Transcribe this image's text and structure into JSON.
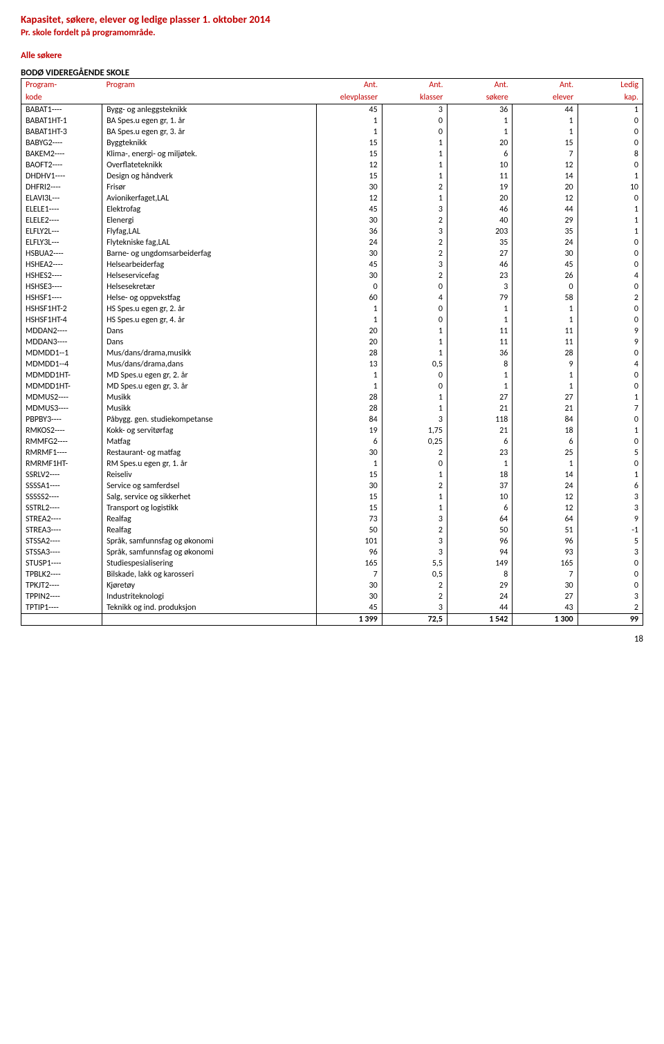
{
  "title": "Kapasitet, søkere, elever og ledige plasser 1. oktober 2014",
  "subtitle": "Pr. skole fordelt på programområde.",
  "section_label": "Alle søkere",
  "school_name": "BODØ VIDEREGÅENDE SKOLE",
  "header": {
    "row1": [
      "Program-",
      "Program",
      "Ant.",
      "Ant.",
      "Ant.",
      "Ant.",
      "Ledig"
    ],
    "row2": [
      "kode",
      "",
      "elevplasser",
      "klasser",
      "søkere",
      "elever",
      "kap."
    ]
  },
  "rows": [
    [
      "BABAT1----",
      "Bygg- og anleggsteknikk",
      45,
      3,
      36,
      44,
      1
    ],
    [
      "BABAT1HT-1",
      "BA Spes.u egen gr, 1. år",
      1,
      0,
      1,
      1,
      0
    ],
    [
      "BABAT1HT-3",
      "BA Spes.u egen gr, 3. år",
      1,
      0,
      1,
      1,
      0
    ],
    [
      "BABYG2----",
      "Byggteknikk",
      15,
      1,
      20,
      15,
      0
    ],
    [
      "BAKEM2----",
      "Klima-, energi- og miljøtek.",
      15,
      1,
      6,
      7,
      8
    ],
    [
      "BAOFT2----",
      "Overflateteknikk",
      12,
      1,
      10,
      12,
      0
    ],
    [
      "DHDHV1----",
      "Design og håndverk",
      15,
      1,
      11,
      14,
      1
    ],
    [
      "DHFRI2----",
      "Frisør",
      30,
      2,
      19,
      20,
      10
    ],
    [
      "ELAVI3L---",
      "Avionikerfaget,LAL",
      12,
      1,
      20,
      12,
      0
    ],
    [
      "ELELE1----",
      "Elektrofag",
      45,
      3,
      46,
      44,
      1
    ],
    [
      "ELELE2----",
      "Elenergi",
      30,
      2,
      40,
      29,
      1
    ],
    [
      "ELFLY2L---",
      "Flyfag,LAL",
      36,
      3,
      203,
      35,
      1
    ],
    [
      "ELFLY3L---",
      "Flytekniske fag,LAL",
      24,
      2,
      35,
      24,
      0
    ],
    [
      "HSBUA2----",
      "Barne- og ungdomsarbeiderfag",
      30,
      2,
      27,
      30,
      0
    ],
    [
      "HSHEA2----",
      "Helsearbeiderfag",
      45,
      3,
      46,
      45,
      0
    ],
    [
      "HSHES2----",
      "Helseservicefag",
      30,
      2,
      23,
      26,
      4
    ],
    [
      "HSHSE3----",
      "Helsesekretær",
      0,
      0,
      3,
      0,
      0
    ],
    [
      "HSHSF1----",
      "Helse- og oppvekstfag",
      60,
      4,
      79,
      58,
      2
    ],
    [
      "HSHSF1HT-2",
      "HS Spes.u egen gr, 2. år",
      1,
      0,
      1,
      1,
      0
    ],
    [
      "HSHSF1HT-4",
      "HS Spes.u egen gr, 4. år",
      1,
      0,
      1,
      1,
      0
    ],
    [
      "MDDAN2----",
      "Dans",
      20,
      1,
      11,
      11,
      9
    ],
    [
      "MDDAN3----",
      "Dans",
      20,
      1,
      11,
      11,
      9
    ],
    [
      "MDMDD1--1",
      "Mus/dans/drama,musikk",
      28,
      1,
      36,
      28,
      0
    ],
    [
      "MDMDD1--4",
      "Mus/dans/drama,dans",
      13,
      "0,5",
      8,
      9,
      4
    ],
    [
      "MDMDD1HT-",
      "MD Spes.u egen gr, 2. år",
      1,
      0,
      1,
      1,
      0
    ],
    [
      "MDMDD1HT-",
      "MD Spes.u egen gr, 3. år",
      1,
      0,
      1,
      1,
      0
    ],
    [
      "MDMUS2----",
      "Musikk",
      28,
      1,
      27,
      27,
      1
    ],
    [
      "MDMUS3----",
      "Musikk",
      28,
      1,
      21,
      21,
      7
    ],
    [
      "PBPBY3----",
      "Påbygg. gen. studiekompetanse",
      84,
      3,
      118,
      84,
      0
    ],
    [
      "RMKOS2----",
      "Kokk- og servitørfag",
      19,
      "1,75",
      21,
      18,
      1
    ],
    [
      "RMMFG2----",
      "Matfag",
      6,
      "0,25",
      6,
      6,
      0
    ],
    [
      "RMRMF1----",
      "Restaurant- og matfag",
      30,
      2,
      23,
      25,
      5
    ],
    [
      "RMRMF1HT-",
      "RM Spes.u egen gr, 1. år",
      1,
      0,
      1,
      1,
      0
    ],
    [
      "SSRLV2----",
      "Reiseliv",
      15,
      1,
      18,
      14,
      1
    ],
    [
      "SSSSA1----",
      "Service og samferdsel",
      30,
      2,
      37,
      24,
      6
    ],
    [
      "SSSSS2----",
      "Salg, service og sikkerhet",
      15,
      1,
      10,
      12,
      3
    ],
    [
      "SSTRL2----",
      "Transport og logistikk",
      15,
      1,
      6,
      12,
      3
    ],
    [
      "STREA2----",
      "Realfag",
      73,
      3,
      64,
      64,
      9
    ],
    [
      "STREA3----",
      "Realfag",
      50,
      2,
      50,
      51,
      -1
    ],
    [
      "STSSA2----",
      "Språk, samfunnsfag og økonomi",
      101,
      3,
      96,
      96,
      5
    ],
    [
      "STSSA3----",
      "Språk, samfunnsfag og økonomi",
      96,
      3,
      94,
      93,
      3
    ],
    [
      "STUSP1----",
      "Studiespesialisering",
      165,
      "5,5",
      149,
      165,
      0
    ],
    [
      "TPBLK2----",
      "Bilskade, lakk og karosseri",
      7,
      "0,5",
      8,
      7,
      0
    ],
    [
      "TPKJT2----",
      "Kjøretøy",
      30,
      2,
      29,
      30,
      0
    ],
    [
      "TPPIN2----",
      "Industriteknologi",
      30,
      2,
      24,
      27,
      3
    ],
    [
      "TPTIP1----",
      "Teknikk og ind. produksjon",
      45,
      3,
      44,
      43,
      2
    ]
  ],
  "totals": [
    "",
    "",
    "1 399",
    "72,5",
    "1 542",
    "1 300",
    99
  ],
  "page_number": 18,
  "colors": {
    "accent": "#c00000",
    "text": "#000000",
    "background": "#ffffff"
  }
}
